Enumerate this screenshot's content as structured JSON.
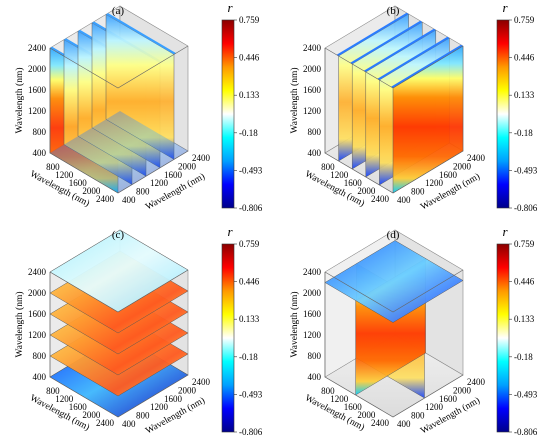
{
  "chart_data": [
    {
      "type": "heatmap",
      "panel_label": "(a)",
      "slice_orientation": "vertical slices stacked along the front-right axis",
      "axes": {
        "vertical": {
          "label": "Wavelength (nm)",
          "ticks": [
            "400",
            "800",
            "1200",
            "1600",
            "2000",
            "2400"
          ],
          "range": [
            400,
            2400
          ]
        },
        "front_left": {
          "label": "Wavelength (nm)",
          "ticks": [
            "800",
            "1200",
            "1600",
            "2000",
            "2400"
          ],
          "range": [
            400,
            2400
          ]
        },
        "front_right": {
          "label": "Wavelength (nm)",
          "ticks": [
            "400",
            "800",
            "1200",
            "1600",
            "2000",
            "2400"
          ],
          "range": [
            400,
            2400
          ]
        }
      },
      "colorbar": {
        "label": "r",
        "ticks": [
          "0.759",
          "0.446",
          "0.133",
          "-0.18",
          "-0.493",
          "-0.806"
        ],
        "range": [
          -0.806,
          0.759
        ]
      }
    },
    {
      "type": "heatmap",
      "panel_label": "(b)",
      "slice_orientation": "vertical slices stacked along the front-left axis",
      "axes": {
        "vertical": {
          "label": "Wavelength (nm)",
          "ticks": [
            "400",
            "800",
            "1200",
            "1600",
            "2000",
            "2400"
          ],
          "range": [
            400,
            2400
          ]
        },
        "front_left": {
          "label": "Wavelength (nm)",
          "ticks": [
            "800",
            "1200",
            "1600",
            "2000",
            "2400"
          ],
          "range": [
            400,
            2400
          ]
        },
        "front_right": {
          "label": "Wavelength (nm)",
          "ticks": [
            "400",
            "800",
            "1200",
            "1600",
            "2000",
            "2400"
          ],
          "range": [
            400,
            2400
          ]
        }
      },
      "colorbar": {
        "label": "r",
        "ticks": [
          "0.759",
          "0.446",
          "0.133",
          "-0.18",
          "-0.493",
          "-0.806"
        ],
        "range": [
          -0.806,
          0.759
        ]
      }
    },
    {
      "type": "heatmap",
      "panel_label": "(c)",
      "slice_orientation": "horizontal slices stacked along the vertical axis",
      "axes": {
        "vertical": {
          "label": "Wavelength (nm)",
          "ticks": [
            "400",
            "800",
            "1200",
            "1600",
            "2000",
            "2400"
          ],
          "range": [
            400,
            2400
          ]
        },
        "front_left": {
          "label": "Wavelength (nm)",
          "ticks": [
            "800",
            "1200",
            "1600",
            "2000",
            "2400"
          ],
          "range": [
            400,
            2400
          ]
        },
        "front_right": {
          "label": "Wavelength (nm)",
          "ticks": [
            "400",
            "800",
            "1200",
            "1600",
            "2000",
            "2400"
          ],
          "range": [
            400,
            2400
          ]
        }
      },
      "colorbar": {
        "label": "r",
        "ticks": [
          "0.759",
          "0.446",
          "0.133",
          "-0.18",
          "-0.493",
          "-0.806"
        ],
        "range": [
          -0.806,
          0.759
        ]
      }
    },
    {
      "type": "heatmap",
      "panel_label": "(d)",
      "slice_orientation": "three orthogonal slices (top, left wall, right wall)",
      "axes": {
        "vertical": {
          "label": "Wavelength (nm)",
          "ticks": [
            "400",
            "800",
            "1200",
            "1600",
            "2000",
            "2400"
          ],
          "range": [
            400,
            2400
          ]
        },
        "front_left": {
          "label": "Wavelength (nm)",
          "ticks": [
            "800",
            "1200",
            "1600",
            "2000",
            "2400"
          ],
          "range": [
            400,
            2400
          ]
        },
        "front_right": {
          "label": "Wavelength (nm)",
          "ticks": [
            "400",
            "800",
            "1200",
            "1600",
            "2000",
            "2400"
          ],
          "range": [
            400,
            2400
          ]
        }
      },
      "colorbar": {
        "label": "r",
        "ticks": [
          "0.759",
          "0.446",
          "0.133",
          "-0.18",
          "-0.493",
          "-0.806"
        ],
        "range": [
          -0.806,
          0.759
        ]
      }
    }
  ],
  "colorscale": [
    "#00008b",
    "#0000ff",
    "#00a0ff",
    "#00ffff",
    "#ffffff",
    "#ffff00",
    "#ff9900",
    "#ff0000",
    "#8b0000"
  ]
}
